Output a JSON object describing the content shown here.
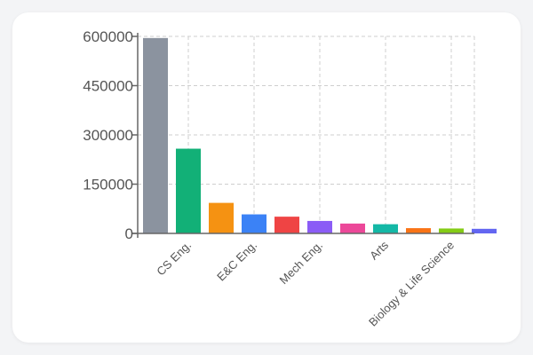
{
  "chart_data": {
    "type": "bar",
    "categories": [
      "",
      "CS Eng.",
      "",
      "E&C Eng.",
      "",
      "Mech Eng.",
      "",
      "Arts",
      "",
      "Biology & Life Science",
      ""
    ],
    "values": [
      595000,
      258000,
      93000,
      58000,
      51000,
      38000,
      30000,
      28000,
      16000,
      15000,
      14000
    ],
    "colors": [
      "#8b939f",
      "#12b077",
      "#f59212",
      "#3b82f6",
      "#ef4444",
      "#8b5cf6",
      "#ec4899",
      "#14b8a6",
      "#f97316",
      "#84cc16",
      "#6366f1"
    ],
    "yticks": [
      "0",
      "150000",
      "300000",
      "450000",
      "600000"
    ],
    "ylim": [
      0,
      600000
    ],
    "grid": true,
    "title": "",
    "xlabel": "",
    "ylabel": ""
  }
}
